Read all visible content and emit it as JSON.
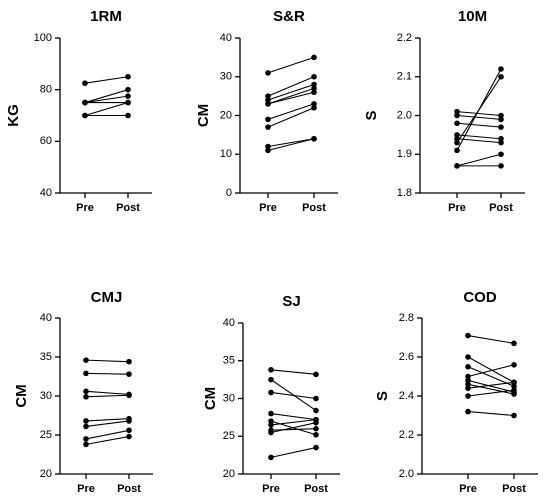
{
  "chart_data": [
    {
      "type": "line",
      "title": "1RM",
      "xlabel": "",
      "ylabel": "KG",
      "categories": [
        "Pre",
        "Post"
      ],
      "ylim": [
        40,
        100
      ],
      "yticks": [
        40,
        60,
        80,
        100
      ],
      "ytick_labels": [
        "40",
        "60",
        "80",
        "100"
      ],
      "pairs": [
        [
          82.5,
          85
        ],
        [
          75,
          80
        ],
        [
          75,
          77.5
        ],
        [
          75,
          75
        ],
        [
          70,
          75
        ],
        [
          70,
          70
        ]
      ]
    },
    {
      "type": "line",
      "title": "S&R",
      "xlabel": "",
      "ylabel": "CM",
      "categories": [
        "Pre",
        "Post"
      ],
      "ylim": [
        0,
        40
      ],
      "yticks": [
        0,
        10,
        20,
        30,
        40
      ],
      "ytick_labels": [
        "0",
        "10",
        "20",
        "30",
        "40"
      ],
      "pairs": [
        [
          31,
          35
        ],
        [
          25,
          30
        ],
        [
          24,
          28
        ],
        [
          23,
          27
        ],
        [
          23,
          26
        ],
        [
          19,
          23
        ],
        [
          17,
          22
        ],
        [
          12,
          14
        ],
        [
          11,
          14
        ]
      ]
    },
    {
      "type": "line",
      "title": "10M",
      "xlabel": "",
      "ylabel": "S",
      "categories": [
        "Pre",
        "Post"
      ],
      "ylim": [
        1.8,
        2.2
      ],
      "yticks": [
        1.8,
        1.9,
        2.0,
        2.1,
        2.2
      ],
      "ytick_labels": [
        "1.8",
        "1.9",
        "2.0",
        "2.1",
        "2.2"
      ],
      "pairs": [
        [
          2.01,
          2.0
        ],
        [
          2.0,
          1.99
        ],
        [
          1.98,
          1.97
        ],
        [
          1.95,
          1.94
        ],
        [
          1.94,
          1.93
        ],
        [
          1.93,
          2.1
        ],
        [
          1.91,
          2.12
        ],
        [
          1.87,
          1.9
        ],
        [
          1.87,
          1.87
        ]
      ]
    },
    {
      "type": "line",
      "title": "CMJ",
      "xlabel": "",
      "ylabel": "CM",
      "categories": [
        "Pre",
        "Post"
      ],
      "ylim": [
        20,
        40
      ],
      "yticks": [
        20,
        25,
        30,
        35,
        40
      ],
      "ytick_labels": [
        "20",
        "25",
        "30",
        "35",
        "40"
      ],
      "pairs": [
        [
          34.6,
          34.4
        ],
        [
          32.9,
          32.8
        ],
        [
          30.6,
          30.2
        ],
        [
          29.9,
          30.1
        ],
        [
          26.8,
          27.1
        ],
        [
          26.1,
          26.8
        ],
        [
          24.5,
          25.6
        ],
        [
          23.8,
          24.8
        ]
      ]
    },
    {
      "type": "line",
      "title": "SJ",
      "xlabel": "",
      "ylabel": "CM",
      "categories": [
        "Pre",
        "Post"
      ],
      "ylim": [
        20,
        40
      ],
      "yticks": [
        20,
        25,
        30,
        35,
        40
      ],
      "ytick_labels": [
        "20",
        "25",
        "30",
        "35",
        "40"
      ],
      "pairs": [
        [
          33.8,
          33.2
        ],
        [
          32.5,
          28.4
        ],
        [
          30.8,
          30.0
        ],
        [
          28.0,
          27.2
        ],
        [
          27.0,
          25.2
        ],
        [
          26.5,
          27.2
        ],
        [
          25.8,
          26.0
        ],
        [
          25.5,
          26.8
        ],
        [
          22.2,
          23.5
        ]
      ]
    },
    {
      "type": "line",
      "title": "COD",
      "xlabel": "",
      "ylabel": "S",
      "categories": [
        "Pre",
        "Post"
      ],
      "ylim": [
        2.0,
        2.8
      ],
      "yticks": [
        2.0,
        2.2,
        2.4,
        2.6,
        2.8
      ],
      "ytick_labels": [
        "2.0",
        "2.2",
        "2.4",
        "2.6",
        "2.8"
      ],
      "pairs": [
        [
          2.71,
          2.67
        ],
        [
          2.6,
          2.47
        ],
        [
          2.55,
          2.45
        ],
        [
          2.5,
          2.56
        ],
        [
          2.48,
          2.42
        ],
        [
          2.46,
          2.41
        ],
        [
          2.44,
          2.47
        ],
        [
          2.4,
          2.43
        ],
        [
          2.32,
          2.3
        ]
      ]
    }
  ]
}
